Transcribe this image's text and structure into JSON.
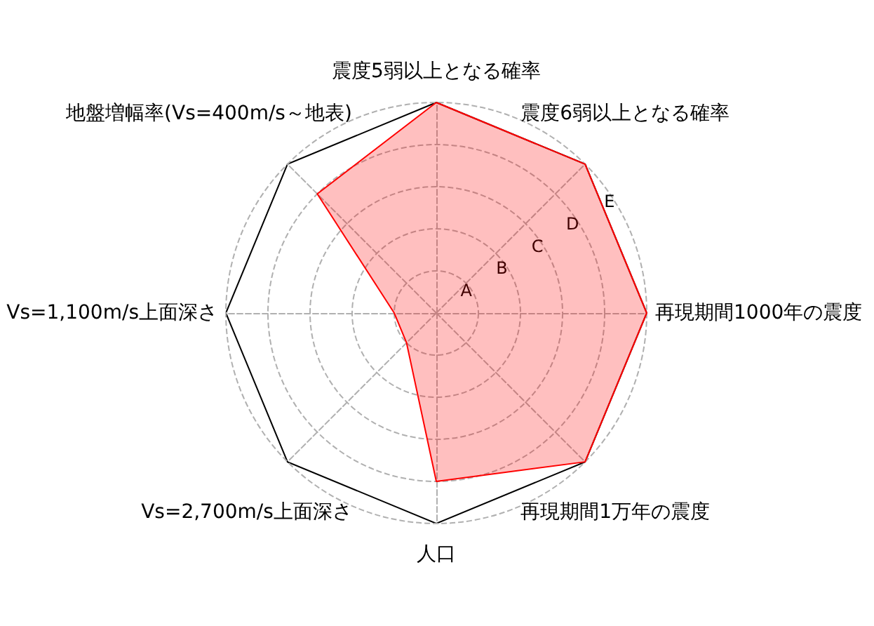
{
  "chart_data": {
    "type": "radar",
    "categories": [
      "震度5弱以上となる確率",
      "震度6弱以上となる確率",
      "再現期間1000年の震度",
      "再現期間1万年の震度",
      "人口",
      "Vs=2,700m/s上面深さ",
      "Vs=1,100m/s上面深さ",
      "地盤増幅率(Vs=400m/s～地表)"
    ],
    "series": [
      {
        "color": "#ff0000",
        "values": [
          5,
          5,
          5,
          5,
          4,
          1,
          1,
          4
        ]
      }
    ],
    "ylim": [
      0,
      5
    ],
    "yticks": [
      {
        "value": 1,
        "label": "A"
      },
      {
        "value": 2,
        "label": "B"
      },
      {
        "value": 3,
        "label": "C"
      },
      {
        "value": 4,
        "label": "D"
      },
      {
        "value": 5,
        "label": "E"
      }
    ],
    "grid": true,
    "marker": "none"
  }
}
